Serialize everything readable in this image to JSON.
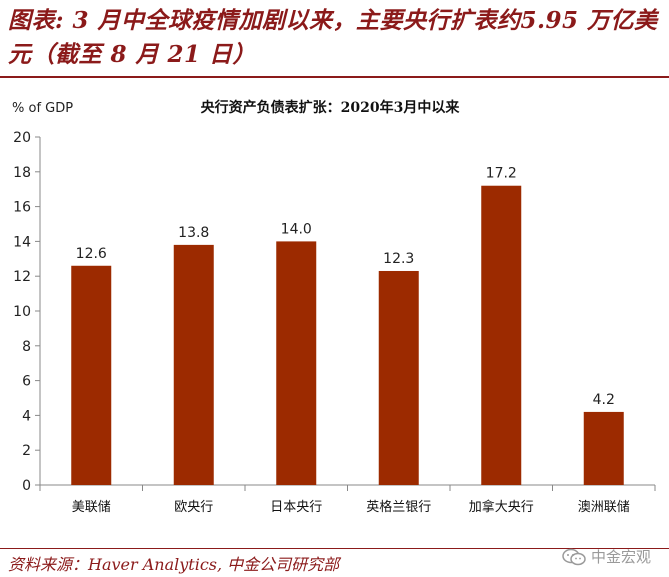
{
  "figure": {
    "title": "图表: 3 月中全球疫情加剧以来，主要央行扩表约5.95 万亿美元（截至 8 月 21 日）",
    "source": "资料来源：Haver Analytics,  中金公司研究部",
    "watermark": "中金宏观"
  },
  "colors": {
    "bar": "#9c2a00",
    "title": "#8b1a1a",
    "axis": "#888888"
  },
  "chart_data": {
    "type": "bar",
    "title": "央行资产负债表扩张：2020年3月中以来",
    "ylabel": "% of GDP",
    "xlabel": "",
    "ylim": [
      0,
      20
    ],
    "yticks": [
      0,
      2,
      4,
      6,
      8,
      10,
      12,
      14,
      16,
      18,
      20
    ],
    "grid": false,
    "categories": [
      "美联储",
      "欧央行",
      "日本央行",
      "英格兰银行",
      "加拿大央行",
      "澳洲联储"
    ],
    "values": [
      12.6,
      13.8,
      14.0,
      12.3,
      17.2,
      4.2
    ],
    "data_labels": [
      "12.6",
      "13.8",
      "14.0",
      "12.3",
      "17.2",
      "4.2"
    ]
  }
}
